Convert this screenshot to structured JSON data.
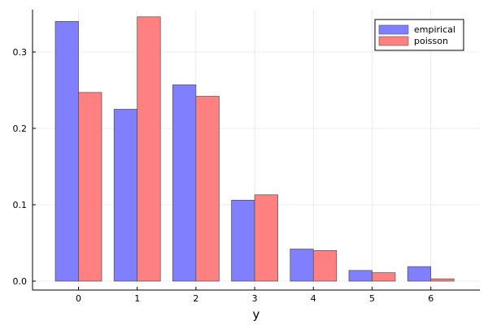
{
  "chart_data": {
    "type": "bar",
    "categories": [
      "0",
      "1",
      "2",
      "3",
      "4",
      "5",
      "6"
    ],
    "xlabel": "y",
    "ylabel": "",
    "ylim": [
      -0.01,
      0.355
    ],
    "yticks": [
      "0.0",
      "0.1",
      "0.2",
      "0.3"
    ],
    "grid": true,
    "legend_position": "top-right",
    "series": [
      {
        "name": "empirical",
        "color": "#8080ff",
        "values": [
          0.34,
          0.225,
          0.257,
          0.106,
          0.042,
          0.014,
          0.019
        ]
      },
      {
        "name": "poisson",
        "color": "#ff8080",
        "values": [
          0.247,
          0.346,
          0.242,
          0.113,
          0.04,
          0.011,
          0.003
        ]
      }
    ]
  }
}
